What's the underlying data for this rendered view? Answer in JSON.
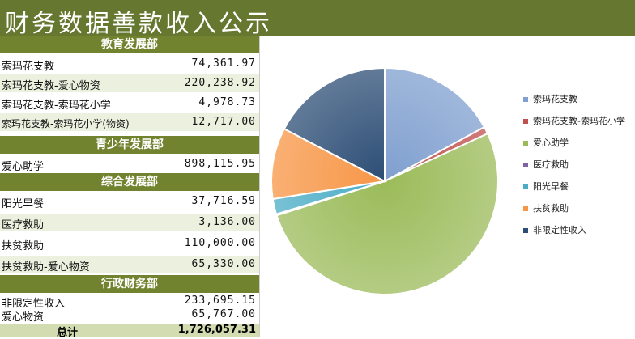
{
  "title": "财务数据善款收入公示",
  "sections": [
    {
      "name": "教育发展部",
      "rows": [
        {
          "name": "索玛花支教",
          "value": "74,361.97"
        },
        {
          "name": "索玛花支教-爱心物资",
          "value": "220,238.92"
        },
        {
          "name": "索玛花支教-索玛花小学",
          "value": "4,978.73"
        },
        {
          "name": "索玛花支教-索玛花小学(物资)",
          "value": "12,717.00"
        }
      ]
    },
    {
      "name": "青少年发展部",
      "rows": [
        {
          "name": "爱心助学",
          "value": "898,115.95"
        }
      ]
    },
    {
      "name": "综合发展部",
      "rows": [
        {
          "name": "阳光早餐",
          "value": "37,716.59"
        },
        {
          "name": "医疗救助",
          "value": "3,136.00"
        },
        {
          "name": "扶贫救助",
          "value": "110,000.00"
        },
        {
          "name": "扶贫救助-爱心物资",
          "value": "65,330.00"
        }
      ]
    },
    {
      "name": "行政财务部",
      "rows": [
        {
          "name": "非限定性收入",
          "value": "233,695.15"
        },
        {
          "name": "爱心物资",
          "value": "65,767.00"
        }
      ]
    }
  ],
  "total": {
    "label": "总计",
    "value": "1,726,057.31"
  },
  "chart_data": {
    "type": "pie",
    "categories": [
      "索玛花支教",
      "索玛花支教-索玛花小学",
      "爱心助学",
      "医疗救助",
      "阳光早餐",
      "扶贫救助",
      "非限定性收入"
    ],
    "values": [
      294600.89,
      17695.73,
      898115.95,
      3136.0,
      37716.59,
      175330.0,
      299462.15
    ],
    "colors": [
      "#7f9fcf",
      "#c0504d",
      "#9bbb59",
      "#8064a2",
      "#4bacc6",
      "#f79646",
      "#2c4d75"
    ],
    "legend_position": "right"
  }
}
